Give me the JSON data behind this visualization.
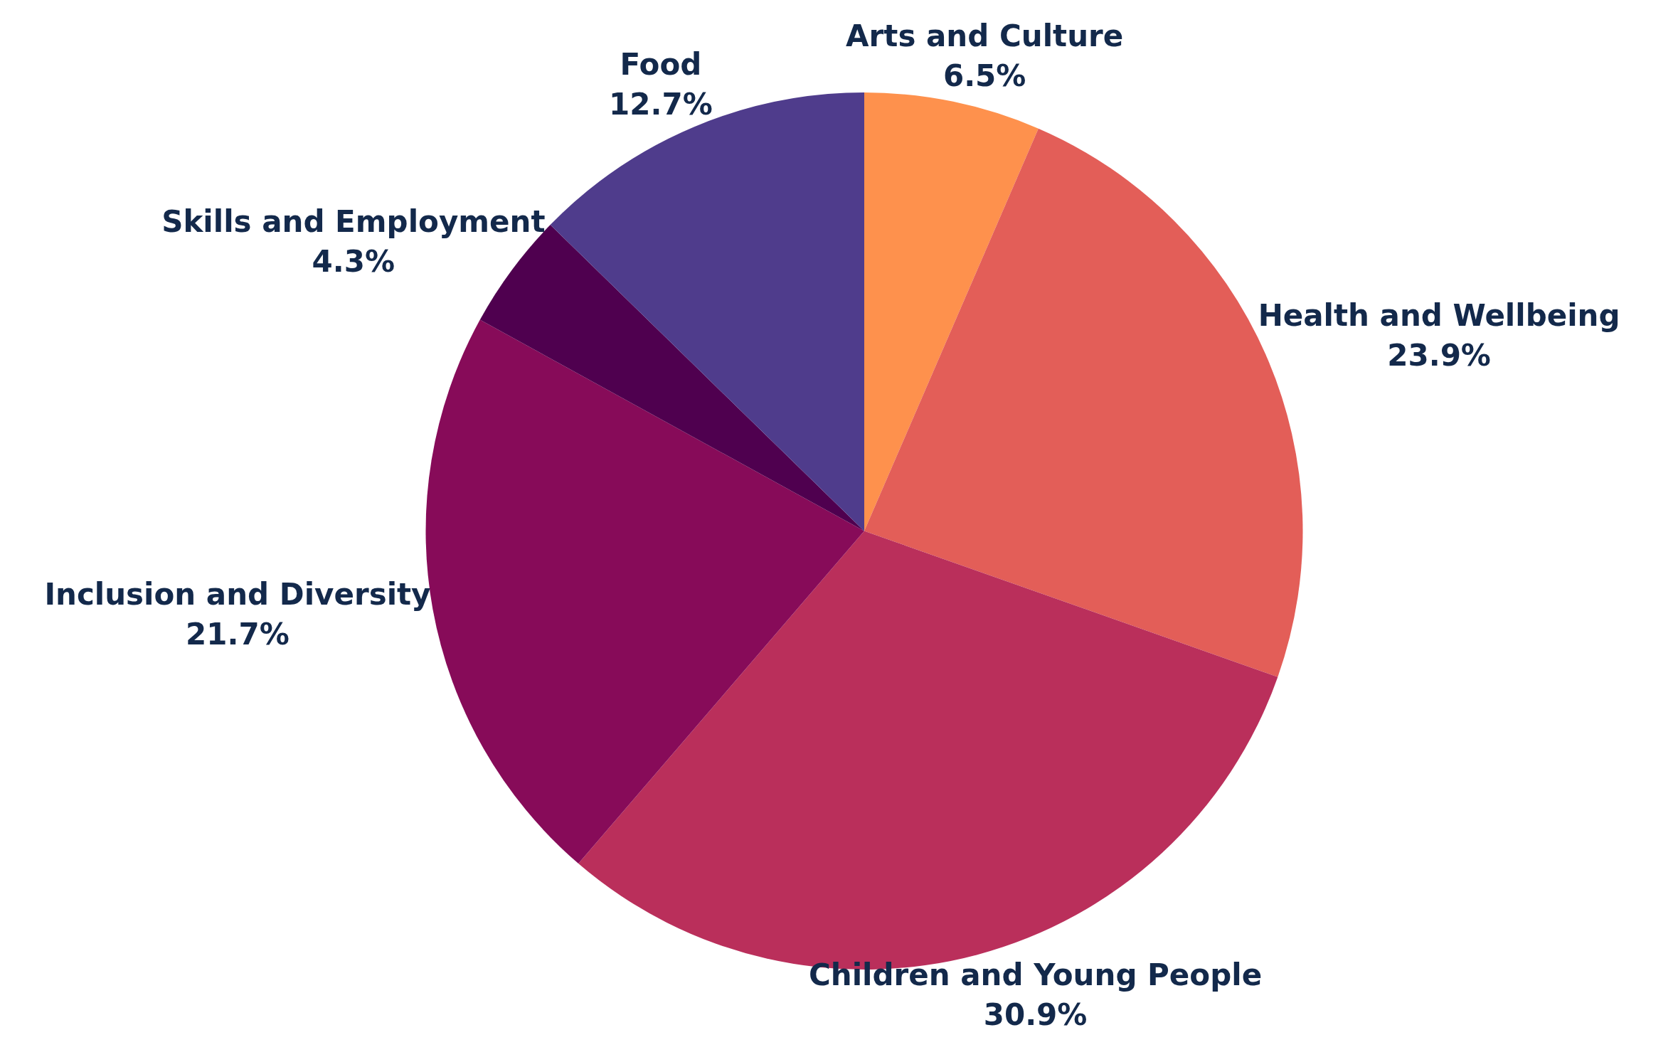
{
  "chart_data": {
    "type": "pie",
    "categories": [
      "Arts and Culture",
      "Health and Wellbeing",
      "Children and Young People",
      "Inclusion and Diversity",
      "Skills and Employment",
      "Food"
    ],
    "values": [
      6.5,
      23.9,
      30.9,
      21.7,
      4.3,
      12.7
    ],
    "value_labels": [
      "6.5%",
      "23.9%",
      "30.9%",
      "21.7%",
      "4.3%",
      "12.7%"
    ],
    "colors": [
      "#fe914d",
      "#e35e58",
      "#ba2f5b",
      "#870b59",
      "#4f004f",
      "#4f3c8c"
    ]
  }
}
